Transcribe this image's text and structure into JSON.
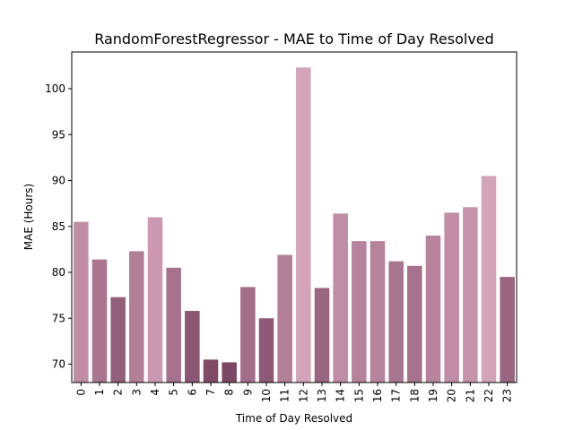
{
  "chart_data": {
    "type": "bar",
    "title": "RandomForestRegressor - MAE to Time of Day Resolved",
    "xlabel": "Time of Day Resolved",
    "ylabel": "MAE (Hours)",
    "categories": [
      "0",
      "1",
      "2",
      "3",
      "4",
      "5",
      "6",
      "7",
      "8",
      "9",
      "10",
      "11",
      "12",
      "13",
      "14",
      "15",
      "16",
      "17",
      "18",
      "19",
      "20",
      "21",
      "22",
      "23"
    ],
    "values": [
      85.5,
      81.4,
      77.3,
      82.3,
      86.0,
      80.5,
      75.8,
      70.5,
      70.2,
      78.4,
      75.0,
      81.9,
      102.3,
      78.3,
      86.4,
      83.4,
      83.4,
      81.2,
      80.7,
      84.0,
      86.5,
      87.1,
      90.5,
      79.5
    ],
    "colors": [
      "#c18da6",
      "#a97590",
      "#935f7b",
      "#b37f98",
      "#cc98b1",
      "#a6718c",
      "#8b5673",
      "#7f4b67",
      "#7d4865",
      "#a36e89",
      "#8e5976",
      "#b37f98",
      "#d3a3b9",
      "#9a6581",
      "#c18da6",
      "#b6829c",
      "#b6829c",
      "#a97590",
      "#a6718c",
      "#b6829c",
      "#c18da6",
      "#c893ac",
      "#d3a3b9",
      "#9a6581"
    ],
    "yticks": [
      70,
      75,
      80,
      85,
      90,
      95,
      100
    ],
    "ylim": [
      68.0,
      104.0
    ],
    "grid": false
  }
}
